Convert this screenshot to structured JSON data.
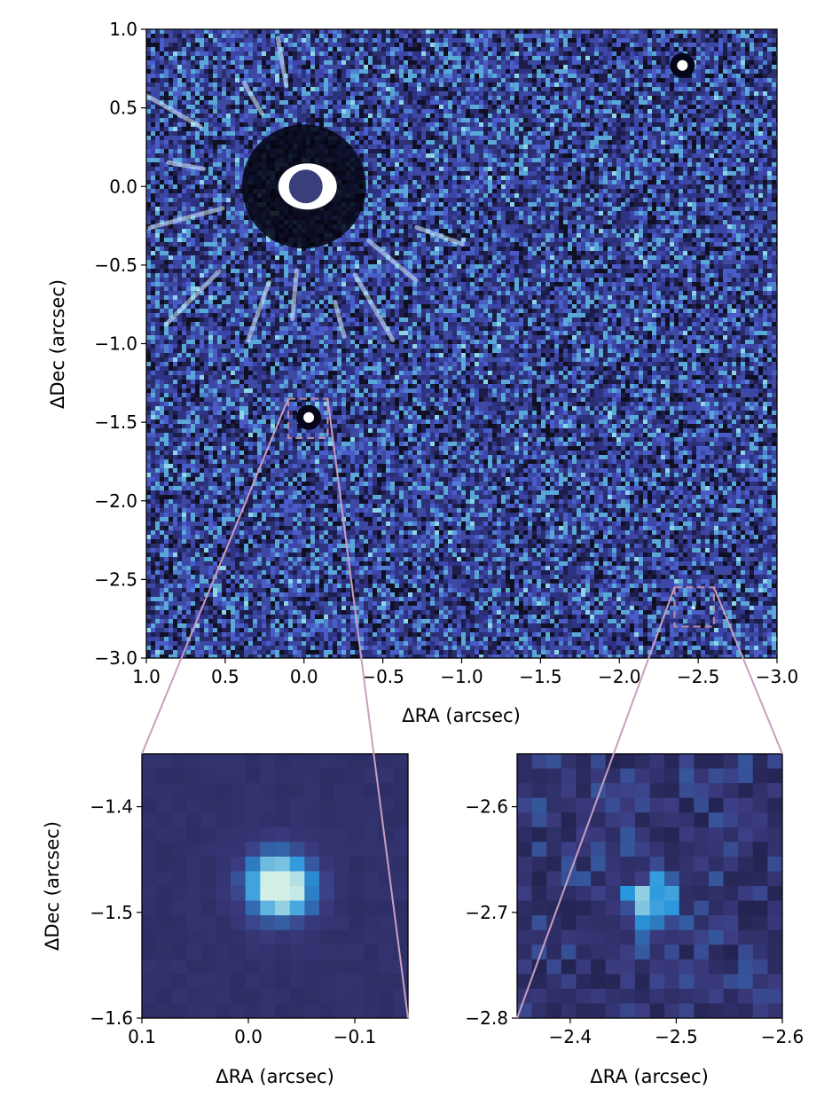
{
  "chart_data": [
    {
      "type": "heatmap",
      "panel": "main",
      "title": "",
      "xlabel": "ΔRA (arcsec)",
      "ylabel": "ΔDec (arcsec)",
      "xlim": [
        1.0,
        -3.0
      ],
      "ylim": [
        -3.0,
        1.0
      ],
      "xticks": [
        1.0,
        0.5,
        0.0,
        -0.5,
        -1.0,
        -1.5,
        -2.0,
        -2.5,
        -3.0
      ],
      "xtick_labels": [
        "1.0",
        "0.5",
        "0.0",
        "−0.5",
        "−1.0",
        "−1.5",
        "−2.0",
        "−2.5",
        "−3.0"
      ],
      "yticks": [
        1.0,
        0.5,
        0.0,
        -0.5,
        -1.0,
        -1.5,
        -2.0,
        -2.5,
        -3.0
      ],
      "ytick_labels": [
        "1.0",
        "0.5",
        "0.0",
        "−0.5",
        "−1.0",
        "−1.5",
        "−2.0",
        "−2.5",
        "−3.0"
      ],
      "sources": [
        {
          "name": "host-star",
          "ra": 0.0,
          "dec": 0.0
        },
        {
          "name": "companion-b",
          "ra": -0.03,
          "dec": -1.47
        },
        {
          "name": "background-star",
          "ra": -2.4,
          "dec": 0.77
        },
        {
          "name": "candidate-c",
          "ra": -2.47,
          "dec": -2.68
        }
      ],
      "zoom_boxes": [
        {
          "name": "zoom-box-b",
          "xlim": [
            0.1,
            -0.15
          ],
          "ylim": [
            -1.6,
            -1.35
          ]
        },
        {
          "name": "zoom-box-c",
          "xlim": [
            -2.35,
            -2.6
          ],
          "ylim": [
            -2.8,
            -2.55
          ]
        }
      ]
    },
    {
      "type": "heatmap",
      "panel": "inset-left",
      "xlabel": "ΔRA (arcsec)",
      "ylabel": "ΔDec (arcsec)",
      "xlim": [
        0.1,
        -0.15
      ],
      "ylim": [
        -1.6,
        -1.35
      ],
      "xticks": [
        0.1,
        0.0,
        -0.1
      ],
      "xtick_labels": [
        "0.1",
        "0.0",
        "−0.1"
      ],
      "yticks": [
        -1.4,
        -1.5,
        -1.6
      ],
      "ytick_labels": [
        "−1.4",
        "−1.5",
        "−1.6"
      ],
      "source": {
        "ra": -0.03,
        "dec": -1.475
      }
    },
    {
      "type": "heatmap",
      "panel": "inset-right",
      "xlabel": "ΔRA (arcsec)",
      "ylabel": "",
      "xlim": [
        -2.35,
        -2.6
      ],
      "ylim": [
        -2.8,
        -2.55
      ],
      "xticks": [
        -2.4,
        -2.5,
        -2.6
      ],
      "xtick_labels": [
        "−2.4",
        "−2.5",
        "−2.6"
      ],
      "yticks": [
        -2.6,
        -2.7,
        -2.8
      ],
      "ytick_labels": [
        "−2.6",
        "−2.7",
        "−2.8"
      ],
      "source": {
        "ra": -2.475,
        "dec": -2.69
      }
    }
  ],
  "colors": {
    "background_noise": "#3a3f8c",
    "bright": "#8fe6e6",
    "connector": "#c8a0c0",
    "box": "#b48aa8"
  }
}
